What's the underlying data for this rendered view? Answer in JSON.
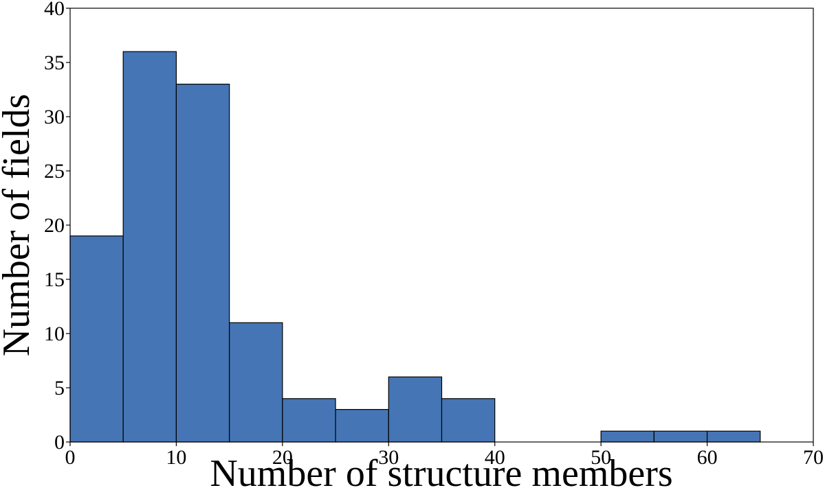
{
  "chart_data": {
    "type": "bar",
    "bin_edges": [
      0,
      5,
      10,
      15,
      20,
      25,
      30,
      35,
      40,
      45,
      50,
      55,
      60,
      65
    ],
    "values": [
      19,
      36,
      33,
      11,
      4,
      3,
      6,
      4,
      0,
      0,
      1,
      1,
      1
    ],
    "xlabel": "Number of structure members",
    "ylabel": "Number of fields",
    "xlim": [
      0,
      70
    ],
    "ylim": [
      0,
      40
    ],
    "xticks": [
      "0",
      "10",
      "20",
      "30",
      "40",
      "50",
      "60",
      "70"
    ],
    "yticks": [
      "0",
      "5",
      "10",
      "15",
      "20",
      "25",
      "30",
      "35",
      "40"
    ],
    "bar_color": "#4575b4",
    "edge_color": "#000000",
    "grid": false
  }
}
